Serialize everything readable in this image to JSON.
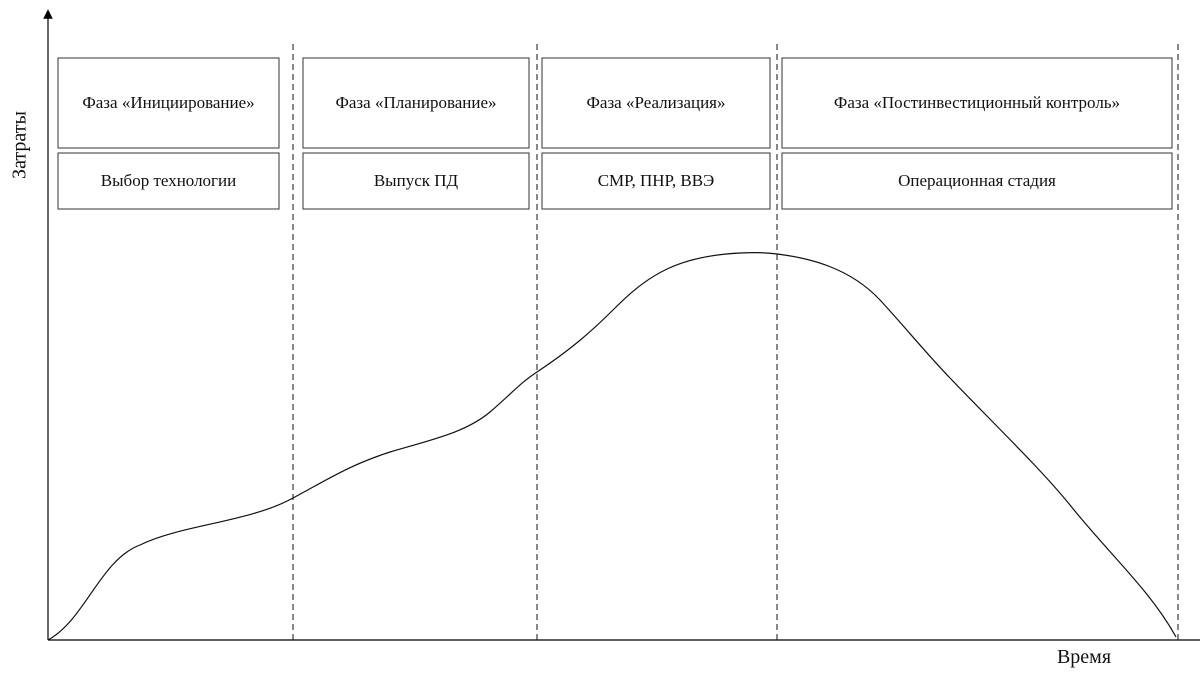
{
  "axes": {
    "y_title": "Затраты",
    "x_title": "Время"
  },
  "phases": [
    {
      "title": "Фаза «Инициирование»",
      "stage": "Выбор технологии"
    },
    {
      "title": "Фаза «Планирование»",
      "stage": "Выпуск ПД"
    },
    {
      "title": "Фаза «Реализация»",
      "stage": "СМР, ПНР, ВВЭ"
    },
    {
      "title": "Фаза «Постинвестиционный контроль»",
      "stage": "Операционная стадия"
    }
  ]
}
